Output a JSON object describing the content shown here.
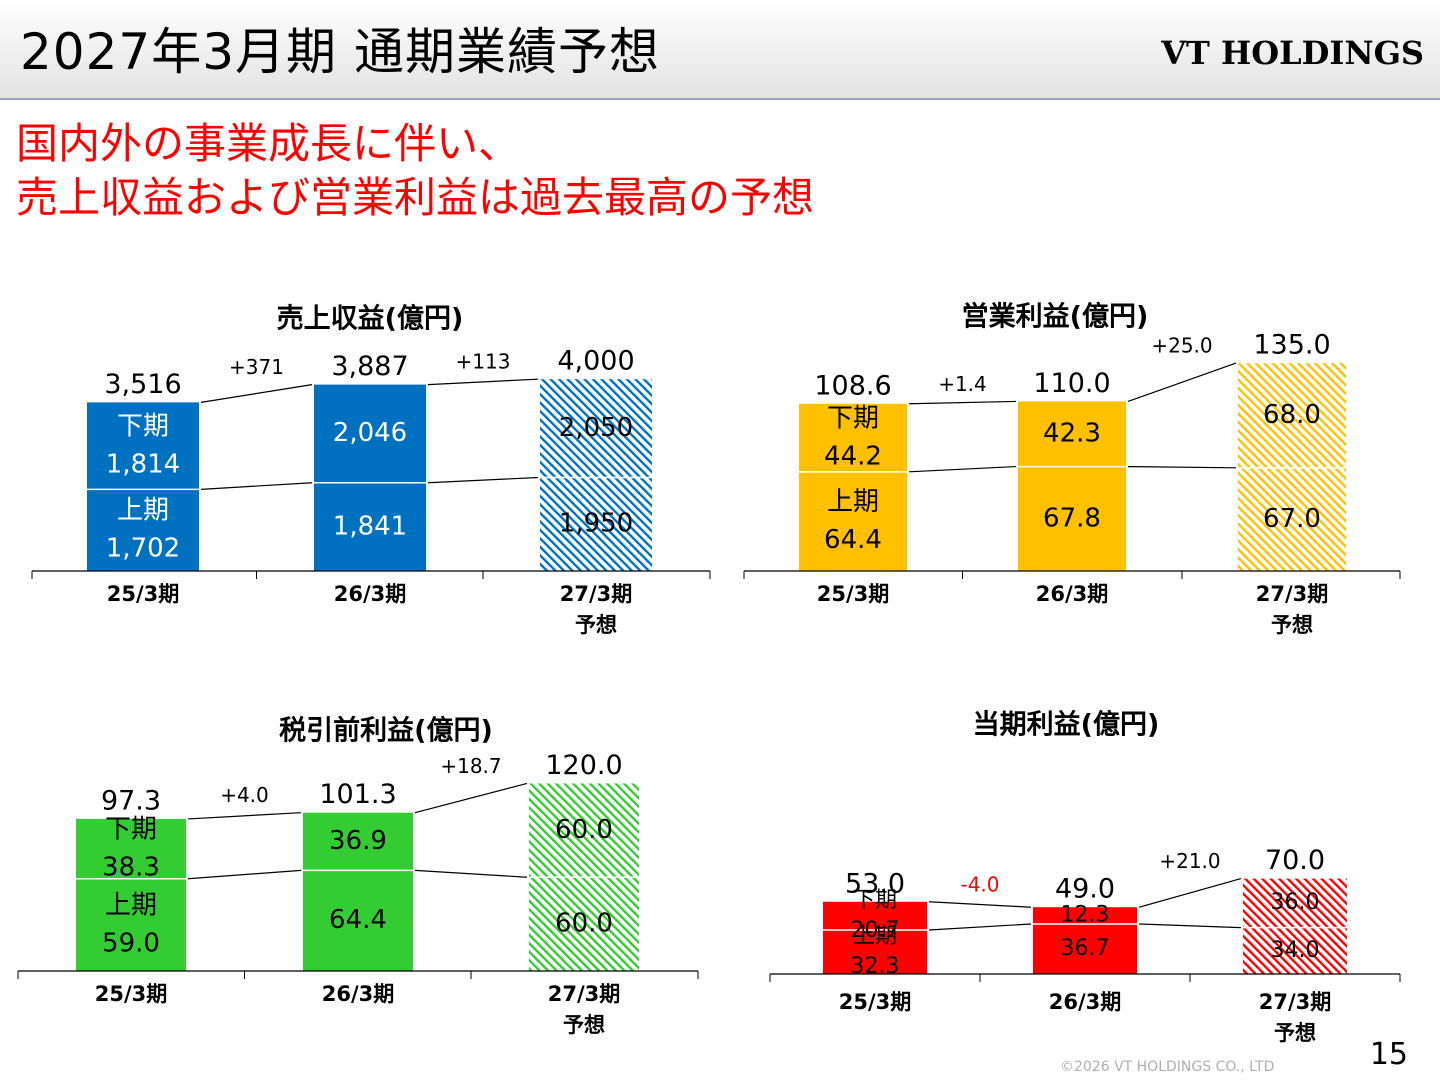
{
  "header": {
    "title": "2027年3月期 通期業績予想",
    "logo_text": "VT HOLDINGS"
  },
  "headline": {
    "line1": "国内外の事業成長に伴い、",
    "line2": "売上収益および営業利益は過去最高の予想"
  },
  "footer": {
    "copyright": "©2026 VT HOLDINGS CO., LTD",
    "page_number": "15"
  },
  "colors": {
    "revenue": "#0070c0",
    "operating_profit": "#ffc000",
    "pretax_profit": "#33cc33",
    "net_profit": "#ff0000",
    "connector": "#000000",
    "forecast_hatch_bg": "#ffffff"
  },
  "chart_data": [
    {
      "id": "revenue",
      "type": "bar",
      "stacked": true,
      "title": "売上収益(億円)",
      "color": "#0070c0",
      "categories": [
        "25/3期",
        "26/3期",
        "27/3期"
      ],
      "category_sublabels": [
        "",
        "",
        "予想"
      ],
      "forecast": [
        false,
        false,
        true
      ],
      "series": [
        {
          "name": "上期",
          "values": [
            1702,
            1841,
            1950
          ],
          "labels": [
            "1,702",
            "1,841",
            "1,950"
          ]
        },
        {
          "name": "下期",
          "values": [
            1814,
            2046,
            2050
          ],
          "labels": [
            "1,814",
            "2,046",
            "2,050"
          ]
        }
      ],
      "segment_name_shown": [
        true,
        false,
        false
      ],
      "totals": [
        "3,516",
        "3,887",
        "4,000"
      ],
      "changes": [
        {
          "label": "+371",
          "color": "#000000"
        },
        {
          "label": "+113",
          "color": "#000000"
        }
      ],
      "ylim": [
        0,
        4400
      ]
    },
    {
      "id": "operating-profit",
      "type": "bar",
      "stacked": true,
      "title": "営業利益(億円)",
      "color": "#ffc000",
      "categories": [
        "25/3期",
        "26/3期",
        "27/3期"
      ],
      "category_sublabels": [
        "",
        "",
        "予想"
      ],
      "forecast": [
        false,
        false,
        true
      ],
      "series": [
        {
          "name": "上期",
          "values": [
            64.4,
            67.8,
            67.0
          ],
          "labels": [
            "64.4",
            "67.8",
            "67.0"
          ]
        },
        {
          "name": "下期",
          "values": [
            44.2,
            42.3,
            68.0
          ],
          "labels": [
            "44.2",
            "42.3",
            "68.0"
          ]
        }
      ],
      "segment_name_shown": [
        true,
        false,
        false
      ],
      "totals": [
        "108.6",
        "110.0",
        "135.0"
      ],
      "changes": [
        {
          "label": "+1.4",
          "color": "#000000"
        },
        {
          "label": "+25.0",
          "color": "#000000"
        }
      ],
      "ylim": [
        0,
        150
      ]
    },
    {
      "id": "pretax-profit",
      "type": "bar",
      "stacked": true,
      "title": "税引前利益(億円)",
      "color": "#33cc33",
      "categories": [
        "25/3期",
        "26/3期",
        "27/3期"
      ],
      "category_sublabels": [
        "",
        "",
        "予想"
      ],
      "forecast": [
        false,
        false,
        true
      ],
      "series": [
        {
          "name": "上期",
          "values": [
            59.0,
            64.4,
            60.0
          ],
          "labels": [
            "59.0",
            "64.4",
            "60.0"
          ]
        },
        {
          "name": "下期",
          "values": [
            38.3,
            36.9,
            60.0
          ],
          "labels": [
            "38.3",
            "36.9",
            "60.0"
          ]
        }
      ],
      "segment_name_shown": [
        true,
        false,
        false
      ],
      "totals": [
        "97.3",
        "101.3",
        "120.0"
      ],
      "changes": [
        {
          "label": "+4.0",
          "color": "#000000"
        },
        {
          "label": "+18.7",
          "color": "#000000"
        }
      ],
      "ylim": [
        0,
        135
      ]
    },
    {
      "id": "net-profit",
      "type": "bar",
      "stacked": true,
      "title": "当期利益(億円)",
      "color": "#ff0000",
      "categories": [
        "25/3期",
        "26/3期",
        "27/3期"
      ],
      "category_sublabels": [
        "",
        "",
        "予想"
      ],
      "forecast": [
        false,
        false,
        true
      ],
      "series": [
        {
          "name": "上期",
          "values": [
            32.3,
            36.7,
            34.0
          ],
          "labels": [
            "32.3",
            "36.7",
            "34.0"
          ]
        },
        {
          "name": "下期",
          "values": [
            20.7,
            12.3,
            36.0
          ],
          "labels": [
            "20.7",
            "12.3",
            "36.0"
          ]
        }
      ],
      "segment_name_shown": [
        true,
        false,
        false
      ],
      "totals": [
        "53.0",
        "49.0",
        "70.0"
      ],
      "changes": [
        {
          "label": "-4.0",
          "color": "#ff0000"
        },
        {
          "label": "+21.0",
          "color": "#000000"
        }
      ],
      "ylim": [
        0,
        135
      ]
    }
  ]
}
